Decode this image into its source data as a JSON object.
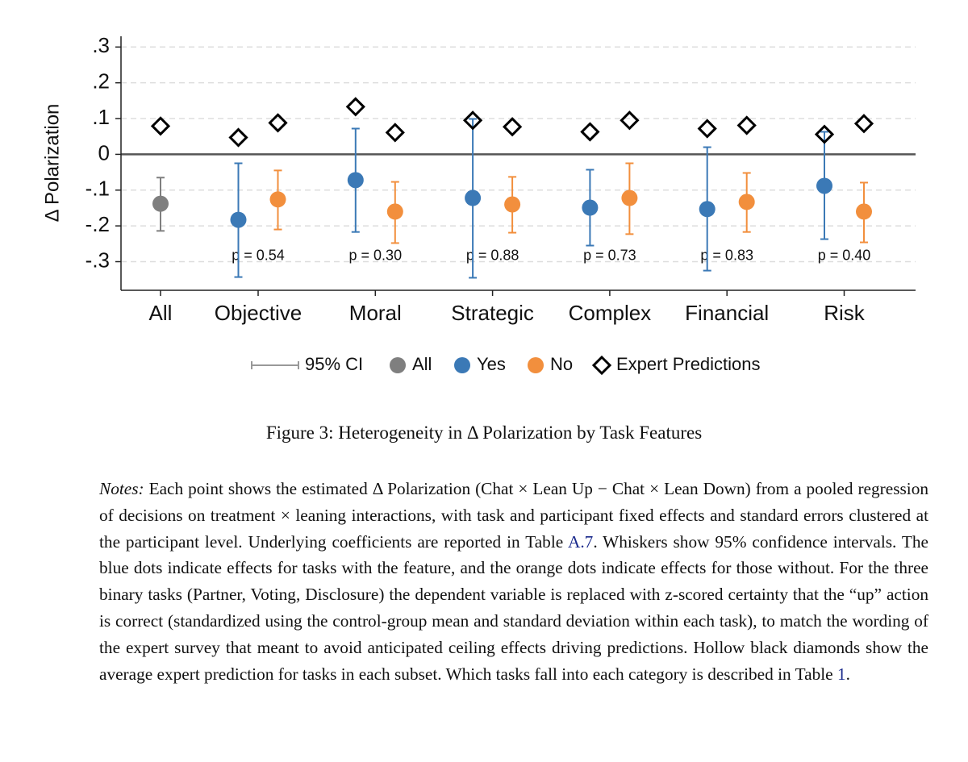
{
  "chart_data": {
    "type": "dot-ci",
    "y_label": "Δ Polarization",
    "categories": [
      "All",
      "Objective",
      "Moral",
      "Strategic",
      "Complex",
      "Financial",
      "Risk"
    ],
    "series": [
      {
        "name": "All",
        "color": "#7f7f7f",
        "values": [
          -0.138,
          null,
          null,
          null,
          null,
          null,
          null
        ],
        "lower": [
          -0.214,
          null,
          null,
          null,
          null,
          null,
          null
        ],
        "upper": [
          -0.065,
          null,
          null,
          null,
          null,
          null,
          null
        ],
        "expert": [
          0.079,
          null,
          null,
          null,
          null,
          null,
          null
        ]
      },
      {
        "name": "Yes",
        "color": "#3b79b6",
        "values": [
          null,
          -0.183,
          -0.072,
          -0.122,
          -0.149,
          -0.153,
          -0.088
        ],
        "lower": [
          null,
          -0.343,
          -0.217,
          -0.345,
          -0.255,
          -0.325,
          -0.237
        ],
        "upper": [
          null,
          -0.025,
          0.072,
          0.099,
          -0.043,
          0.02,
          0.063
        ],
        "expert": [
          null,
          0.047,
          0.133,
          0.095,
          0.063,
          0.072,
          0.056
        ]
      },
      {
        "name": "No",
        "color": "#f28f3d",
        "values": [
          null,
          -0.126,
          -0.16,
          -0.14,
          -0.122,
          -0.133,
          -0.16
        ],
        "lower": [
          null,
          -0.21,
          -0.248,
          -0.219,
          -0.223,
          -0.217,
          -0.246
        ],
        "upper": [
          null,
          -0.045,
          -0.077,
          -0.063,
          -0.025,
          -0.052,
          -0.079
        ],
        "expert": [
          null,
          0.088,
          0.061,
          0.077,
          0.095,
          0.081,
          0.086
        ]
      }
    ],
    "p_labels": [
      null,
      "p = 0.54",
      "p = 0.30",
      "p = 0.88",
      "p = 0.73",
      "p = 0.83",
      "p = 0.40"
    ],
    "legend": {
      "ci": "95% CI",
      "expert": "Expert Predictions"
    },
    "ylim": [
      -0.38,
      0.33
    ],
    "yticks": [
      {
        "value": -0.3,
        "label": "-.3"
      },
      {
        "value": -0.2,
        "label": "-.2"
      },
      {
        "value": -0.1,
        "label": "-.1"
      },
      0,
      {
        "value": 0.1,
        "label": ".1"
      },
      {
        "value": 0.2,
        "label": ".2"
      },
      {
        "value": 0.3,
        "label": ".3"
      }
    ],
    "grid": true
  },
  "caption": "Figure 3: Heterogeneity in Δ Polarization by Task Features",
  "notes": {
    "label": "Notes:",
    "parts": [
      "Each point shows the estimated Δ Polarization (Chat × Lean Up − Chat × Lean Down) from a pooled regression of decisions on treatment × leaning interactions, with task and participant fixed effects and standard errors clustered at the participant level.  Underlying coefficients are reported in Table ",
      "A.7",
      ". Whiskers show 95% confidence intervals. The blue dots indicate effects for tasks with the feature, and the orange dots indicate effects for those without. For the three binary tasks (Partner, Voting, Disclosure) the dependent variable is replaced with z-scored certainty that the “up” action is correct (standardized using the control-group mean and standard deviation within each task), to match the wording of the expert survey that meant to avoid anticipated ceiling effects driving predictions. Hollow black diamonds show the average expert prediction for tasks in each subset. Which tasks fall into each category is described in Table ",
      "1",
      "."
    ]
  }
}
